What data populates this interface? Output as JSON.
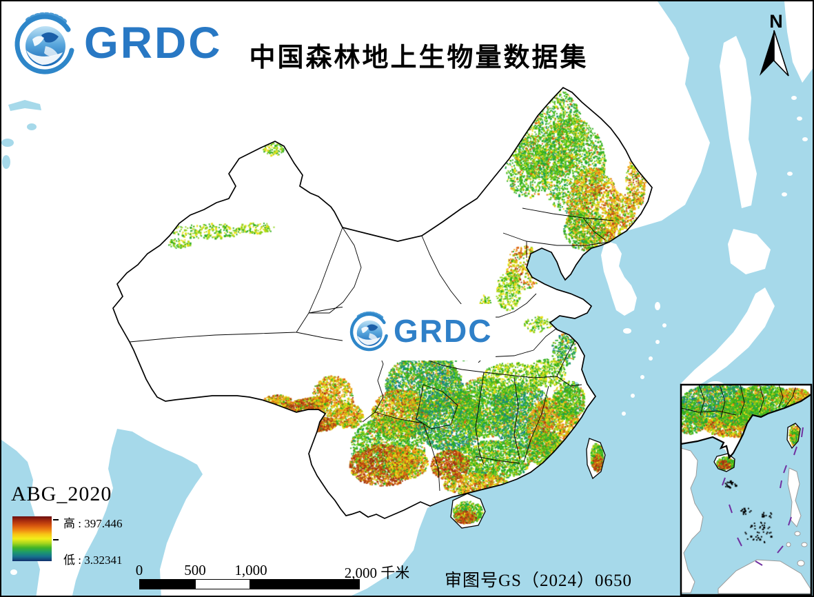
{
  "header": {
    "logo_text": "GRDC",
    "title": "中国森林地上生物量数据集"
  },
  "watermark": {
    "logo_text": "GRDC"
  },
  "north_arrow": {
    "label": "N"
  },
  "legend": {
    "title": "ABG_2020",
    "high_label": "高 : 397.446",
    "low_label": "低 : 3.32341",
    "high_value": 397.446,
    "low_value": 3.32341,
    "ramp_colors": [
      "#6b1010",
      "#a82c0e",
      "#d4520e",
      "#ee8312",
      "#f8c515",
      "#f2ee1a",
      "#a8d61d",
      "#42b427",
      "#1c9a6c",
      "#17718e",
      "#12306e"
    ]
  },
  "scale_bar": {
    "labels": [
      "0",
      "500",
      "1,000",
      "2,000 千米"
    ]
  },
  "map_approval": {
    "text": "审图号GS（2024）0650"
  },
  "colors": {
    "sea": "#a6d9ea",
    "land": "#ffffff",
    "boundary": "#000000",
    "logo_blue": "#2878c4",
    "nine_dash_line": "#7030a0",
    "foreign_coast": "#9a9a9a"
  },
  "inset": {
    "name": "south-china-sea-inset"
  }
}
